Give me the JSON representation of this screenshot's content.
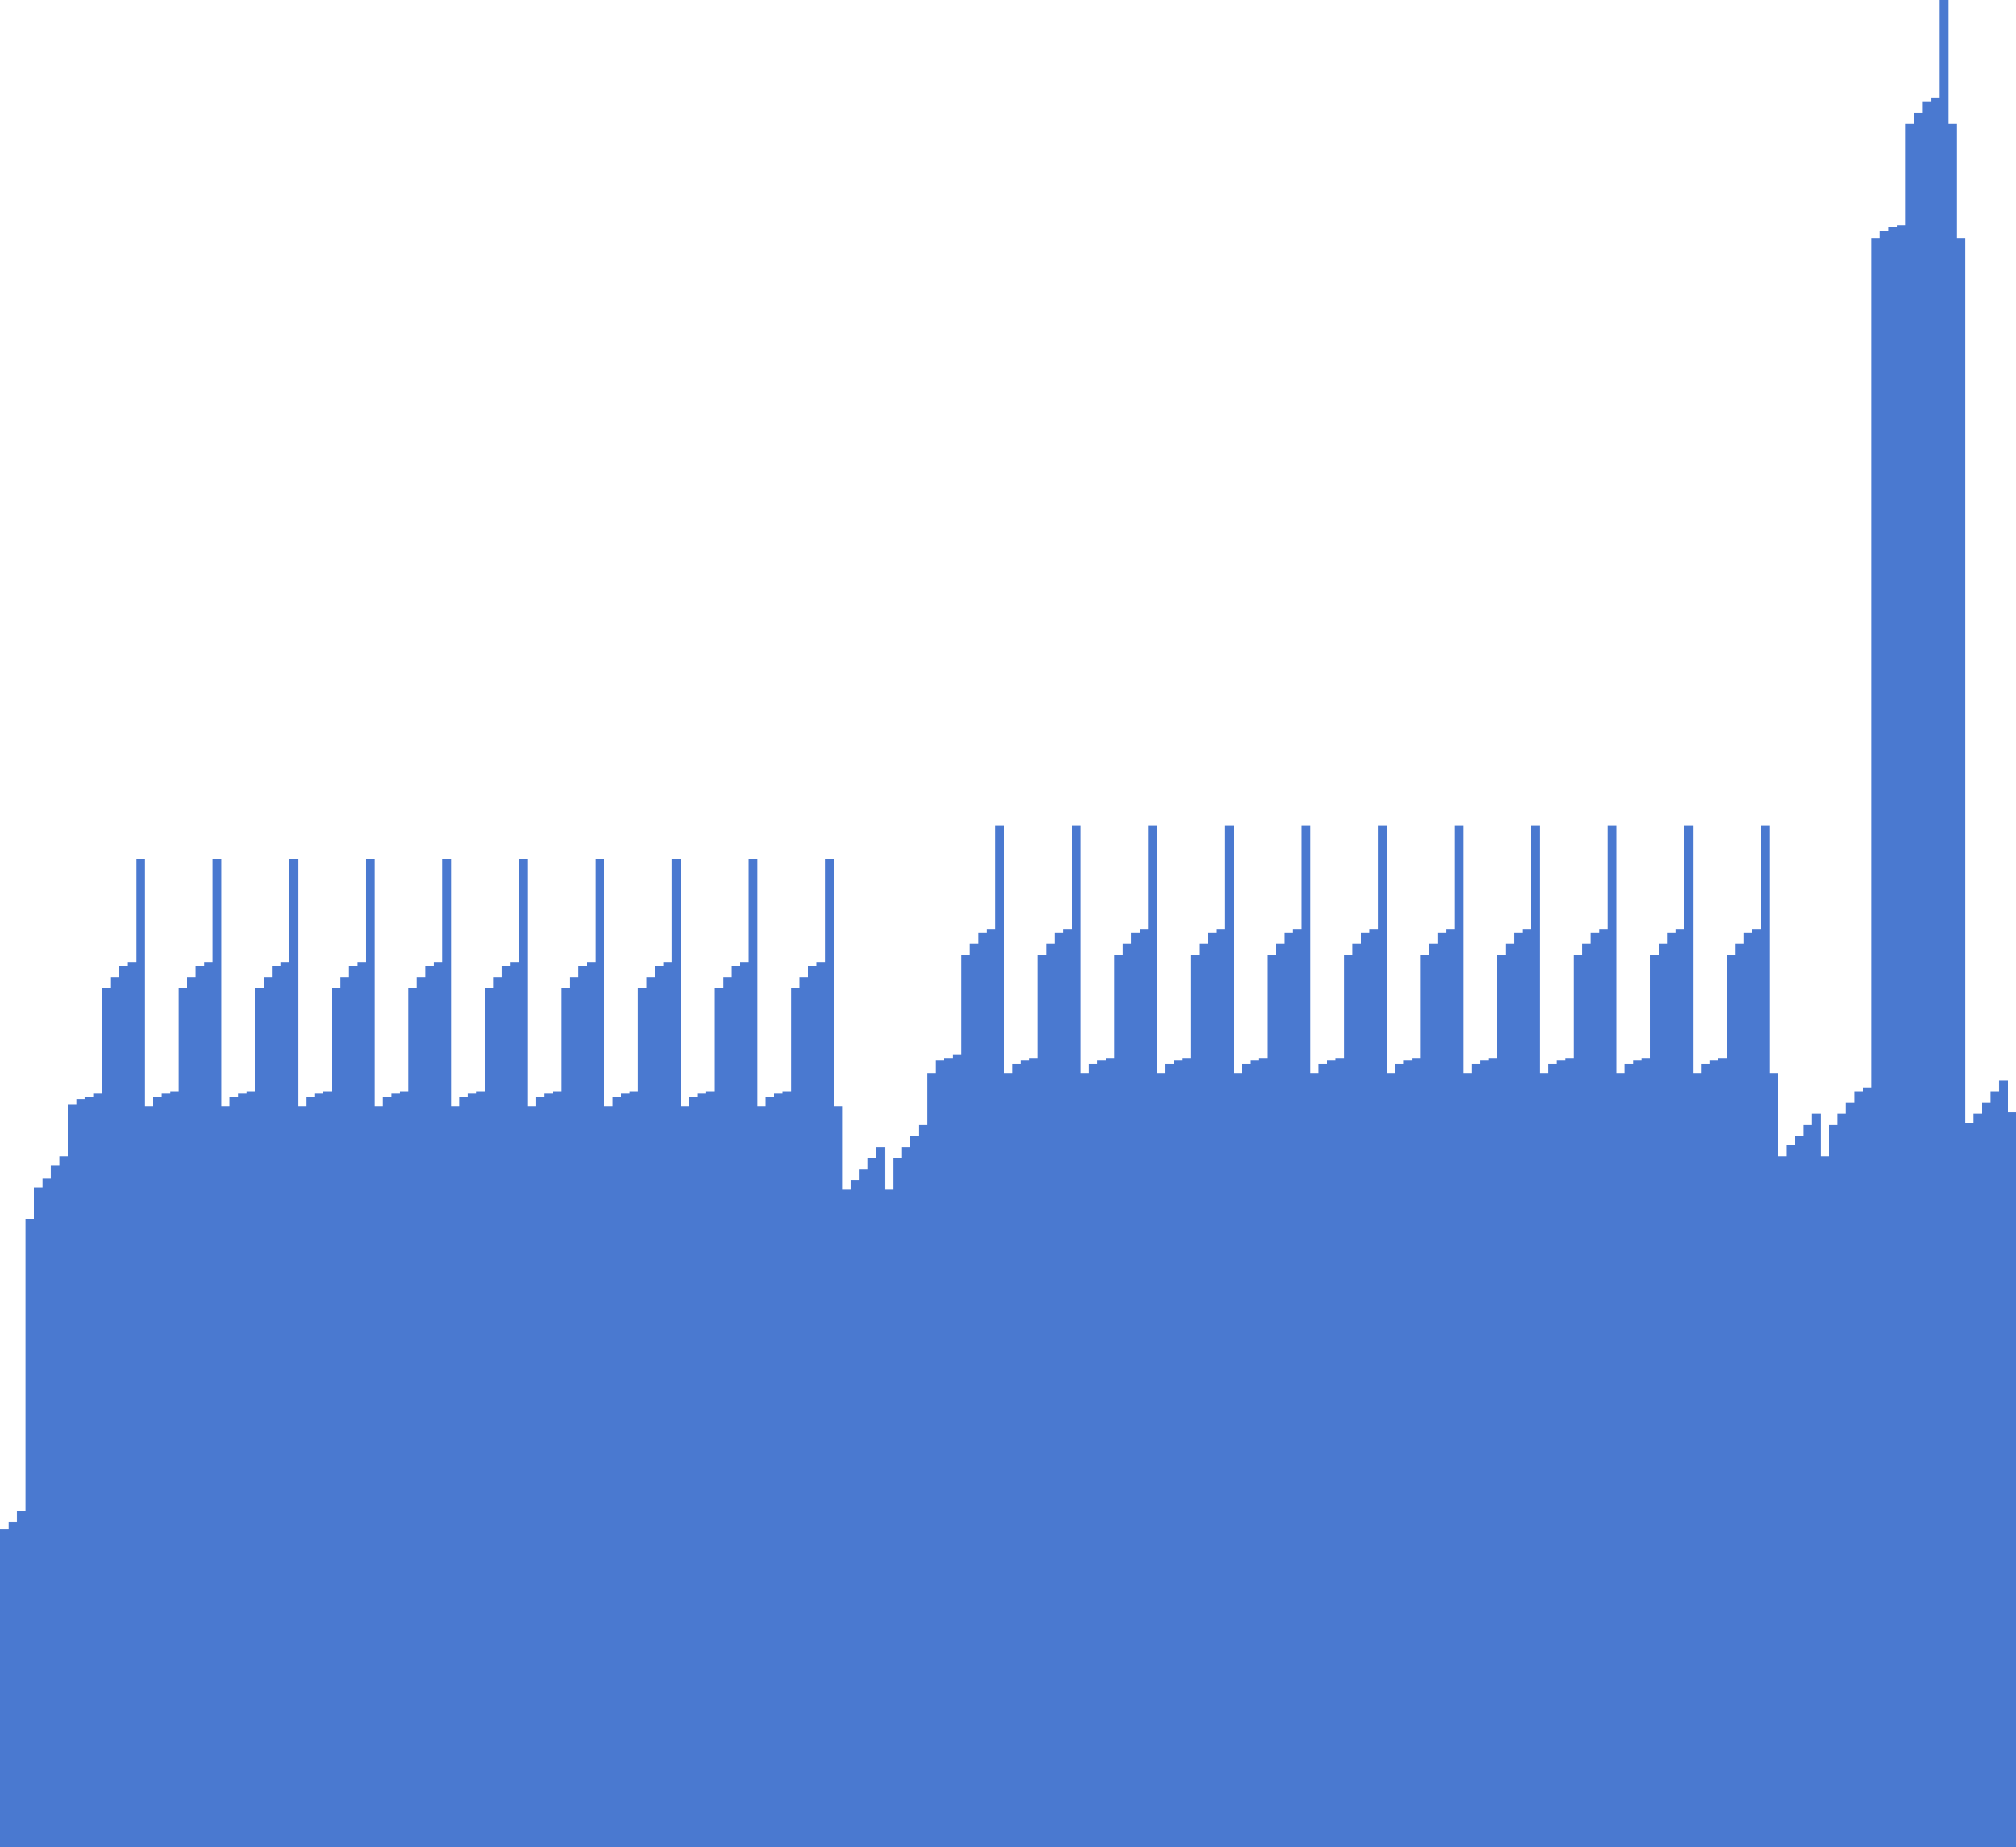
{
  "chart_data": {
    "type": "bar",
    "color": "#4a79d0",
    "grid": false,
    "legend": "none",
    "ylim": [
      0,
      1000
    ],
    "values": [
      172,
      176,
      182,
      340,
      357,
      362,
      369,
      374,
      402,
      405,
      406,
      408,
      465,
      471,
      477,
      479,
      535,
      401,
      406,
      408,
      409,
      465,
      471,
      477,
      479,
      535,
      401,
      406,
      408,
      409,
      465,
      471,
      477,
      479,
      535,
      401,
      406,
      408,
      409,
      465,
      471,
      477,
      479,
      535,
      401,
      406,
      408,
      409,
      465,
      471,
      477,
      479,
      535,
      401,
      406,
      408,
      409,
      465,
      471,
      477,
      479,
      535,
      401,
      406,
      408,
      409,
      465,
      471,
      477,
      479,
      535,
      401,
      406,
      408,
      409,
      465,
      471,
      477,
      479,
      535,
      401,
      406,
      408,
      409,
      465,
      471,
      477,
      479,
      535,
      401,
      406,
      408,
      409,
      465,
      471,
      477,
      479,
      535,
      401,
      356,
      361,
      367,
      373,
      379,
      356,
      373,
      379,
      385,
      391,
      419,
      426,
      427,
      429,
      483,
      489,
      495,
      497,
      553,
      419,
      424,
      426,
      427,
      483,
      489,
      495,
      497,
      553,
      419,
      424,
      426,
      427,
      483,
      489,
      495,
      497,
      553,
      419,
      424,
      426,
      427,
      483,
      489,
      495,
      497,
      553,
      419,
      424,
      426,
      427,
      483,
      489,
      495,
      497,
      553,
      419,
      424,
      426,
      427,
      483,
      489,
      495,
      497,
      553,
      419,
      424,
      426,
      427,
      483,
      489,
      495,
      497,
      553,
      419,
      424,
      426,
      427,
      483,
      489,
      495,
      497,
      553,
      419,
      424,
      426,
      427,
      483,
      489,
      495,
      497,
      553,
      419,
      424,
      426,
      427,
      483,
      489,
      495,
      497,
      553,
      419,
      424,
      426,
      427,
      483,
      489,
      495,
      497,
      553,
      419,
      374,
      380,
      385,
      391,
      397,
      374,
      391,
      397,
      403,
      409,
      411,
      871,
      875,
      877,
      878,
      933,
      939,
      945,
      947,
      1000,
      933,
      871,
      392,
      397,
      403,
      409,
      415,
      398
    ]
  }
}
